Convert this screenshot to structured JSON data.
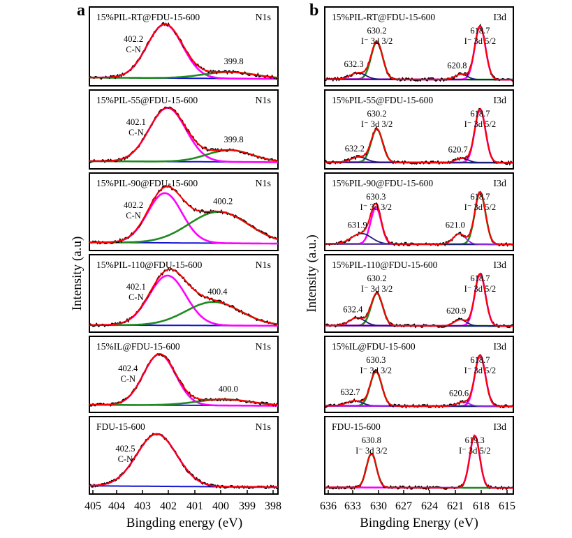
{
  "figure": {
    "panel_letters": [
      "a",
      "b"
    ],
    "ylabel_a": "Intensity (a.u)",
    "ylabel_b": "Intensity (a.u.)",
    "xlabel_a": "Bingding energy (eV)",
    "xlabel_b": "Bingding Energy (eV)",
    "xticks_a": [
      "405",
      "404",
      "403",
      "402",
      "401",
      "400",
      "399",
      "398"
    ],
    "xticks_b": [
      "636",
      "633",
      "630",
      "627",
      "624",
      "621",
      "618",
      "615"
    ]
  },
  "colors": {
    "raw": "#000000",
    "envelope": "#ff0000",
    "main_peak": "#ff00ff",
    "secondary_peak": "#1f8a1f",
    "baseline": "#1515d0",
    "iodine_small": "#1a1a7a",
    "baseline_b": "#8a2be2"
  },
  "chart_data": [
    {
      "type": "line",
      "panel": "a",
      "xlabel": "Bingding energy (eV)",
      "ylabel": "Intensity (a.u)",
      "xlim": [
        405,
        398
      ],
      "reversed_x": true,
      "subplots": [
        {
          "title": "15%PIL-RT@FDU-15-600",
          "tag": "N1s",
          "peaks": [
            {
              "center": 402.2,
              "label": "402.2",
              "sublabel": "C-N",
              "height": 1.0,
              "width": 1.55
            },
            {
              "center": 399.8,
              "label": "399.8",
              "sublabel": "",
              "height": 0.12,
              "width": 2.3
            }
          ],
          "baseline": 0.05
        },
        {
          "title": "15%PIL-55@FDU-15-600",
          "tag": "N1s",
          "peaks": [
            {
              "center": 402.1,
              "label": "402.1",
              "sublabel": "C-N",
              "height": 1.0,
              "width": 1.6
            },
            {
              "center": 399.8,
              "label": "399.8",
              "sublabel": "",
              "height": 0.22,
              "width": 2.0
            }
          ],
          "baseline": 0.04
        },
        {
          "title": "15%PIL-90@FDU-15-600",
          "tag": "N1s",
          "peaks": [
            {
              "center": 402.2,
              "label": "402.2",
              "sublabel": "C-N",
              "height": 0.95,
              "width": 1.5
            },
            {
              "center": 400.2,
              "label": "400.2",
              "sublabel": "",
              "height": 0.6,
              "width": 2.6
            }
          ],
          "baseline": 0.05
        },
        {
          "title": "15%PIL-110@FDU-15-600",
          "tag": "N1s",
          "peaks": [
            {
              "center": 402.1,
              "label": "402.1",
              "sublabel": "C-N",
              "height": 0.95,
              "width": 1.6
            },
            {
              "center": 400.4,
              "label": "400.4",
              "sublabel": "",
              "height": 0.45,
              "width": 2.4
            }
          ],
          "baseline": 0.03
        },
        {
          "title": "15%IL@FDU-15-600",
          "tag": "N1s",
          "peaks": [
            {
              "center": 402.4,
              "label": "402.4",
              "sublabel": "C-N",
              "height": 1.0,
              "width": 1.4
            },
            {
              "center": 400.0,
              "label": "400.0",
              "sublabel": "",
              "height": 0.12,
              "width": 2.4
            }
          ],
          "baseline": 0.04
        },
        {
          "title": "FDU-15-600",
          "tag": "N1s",
          "peaks": [
            {
              "center": 402.5,
              "label": "402.5",
              "sublabel": "C-N",
              "height": 1.0,
              "width": 1.75
            }
          ],
          "baseline": 0.05
        }
      ]
    },
    {
      "type": "line",
      "panel": "b",
      "xlabel": "Bingding Energy (eV)",
      "ylabel": "Intensity (a.u.)",
      "xlim": [
        636,
        615
      ],
      "reversed_x": true,
      "subplots": [
        {
          "title": "15%PIL-RT@FDU-15-600",
          "tag": "I3d",
          "peaks": [
            {
              "center": 630.2,
              "label": "630.2",
              "sublabel": "I⁻ 3d 3/2",
              "height": 0.7,
              "width": 1.5,
              "color": "green"
            },
            {
              "center": 618.7,
              "label": "618.7",
              "sublabel": "I⁻ 3d 5/2",
              "height": 1.0,
              "width": 1.4,
              "color": "magenta"
            },
            {
              "center": 632.3,
              "label": "632.3",
              "sublabel": "",
              "height": 0.12,
              "width": 2.0,
              "color": "navy"
            },
            {
              "center": 620.8,
              "label": "620.8",
              "sublabel": "",
              "height": 0.1,
              "width": 1.6,
              "color": "navy"
            }
          ],
          "baseline": 0.02
        },
        {
          "title": "15%PIL-55@FDU-15-600",
          "tag": "I3d",
          "peaks": [
            {
              "center": 630.2,
              "label": "630.2",
              "sublabel": "I⁻ 3d 3/2",
              "height": 0.62,
              "width": 1.5,
              "color": "green"
            },
            {
              "center": 618.7,
              "label": "618.7",
              "sublabel": "I⁻ 3d 5/2",
              "height": 1.0,
              "width": 1.4,
              "color": "magenta"
            },
            {
              "center": 632.2,
              "label": "632.2",
              "sublabel": "",
              "height": 0.1,
              "width": 2.0,
              "color": "navy"
            },
            {
              "center": 620.7,
              "label": "620.7",
              "sublabel": "",
              "height": 0.08,
              "width": 1.6,
              "color": "navy"
            }
          ],
          "baseline": 0.02
        },
        {
          "title": "15%PIL-90@FDU-15-600",
          "tag": "I3d",
          "peaks": [
            {
              "center": 630.3,
              "label": "630.3",
              "sublabel": "I⁻ 3d 3/2",
              "height": 0.7,
              "width": 1.4,
              "color": "magenta"
            },
            {
              "center": 618.7,
              "label": "618.7",
              "sublabel": "I⁻ 3d 5/2",
              "height": 1.0,
              "width": 1.4,
              "color": "green"
            },
            {
              "center": 631.9,
              "label": "631.9",
              "sublabel": "",
              "height": 0.2,
              "width": 2.6,
              "color": "navy"
            },
            {
              "center": 621.0,
              "label": "621.0",
              "sublabel": "",
              "height": 0.2,
              "width": 1.6,
              "color": "purple"
            }
          ],
          "baseline": 0.02
        },
        {
          "title": "15%PIL-110@FDU-15-600",
          "tag": "I3d",
          "peaks": [
            {
              "center": 630.2,
              "label": "630.2",
              "sublabel": "I⁻ 3d 3/2",
              "height": 0.62,
              "width": 1.5,
              "color": "green"
            },
            {
              "center": 618.7,
              "label": "618.7",
              "sublabel": "I⁻ 3d 5/2",
              "height": 1.0,
              "width": 1.4,
              "color": "magenta"
            },
            {
              "center": 632.4,
              "label": "632.4",
              "sublabel": "",
              "height": 0.15,
              "width": 2.0,
              "color": "navy"
            },
            {
              "center": 620.9,
              "label": "620.9",
              "sublabel": "",
              "height": 0.12,
              "width": 1.6,
              "color": "navy"
            }
          ],
          "baseline": 0.02
        },
        {
          "title": "15%IL@FDU-15-600",
          "tag": "I3d",
          "peaks": [
            {
              "center": 630.3,
              "label": "630.3",
              "sublabel": "I⁻ 3d 3/2",
              "height": 0.68,
              "width": 1.5,
              "color": "green"
            },
            {
              "center": 618.7,
              "label": "618.7",
              "sublabel": "I⁻ 3d 5/2",
              "height": 1.0,
              "width": 1.4,
              "color": "magenta"
            },
            {
              "center": 632.7,
              "label": "632.7",
              "sublabel": "",
              "height": 0.1,
              "width": 2.0,
              "color": "navy"
            },
            {
              "center": 620.6,
              "label": "620.6",
              "sublabel": "",
              "height": 0.08,
              "width": 1.6,
              "color": "purple"
            }
          ],
          "baseline": 0.02
        },
        {
          "title": "FDU-15-600",
          "tag": "I3d",
          "peaks": [
            {
              "center": 630.8,
              "label": "630.8",
              "sublabel": "I⁻ 3d 3/2",
              "height": 0.65,
              "width": 1.3,
              "color": "green"
            },
            {
              "center": 619.3,
              "label": "619.3",
              "sublabel": "I⁻ 3d 5/2",
              "height": 1.0,
              "width": 1.3,
              "color": "magenta"
            }
          ],
          "baseline": 0.02
        }
      ]
    }
  ]
}
